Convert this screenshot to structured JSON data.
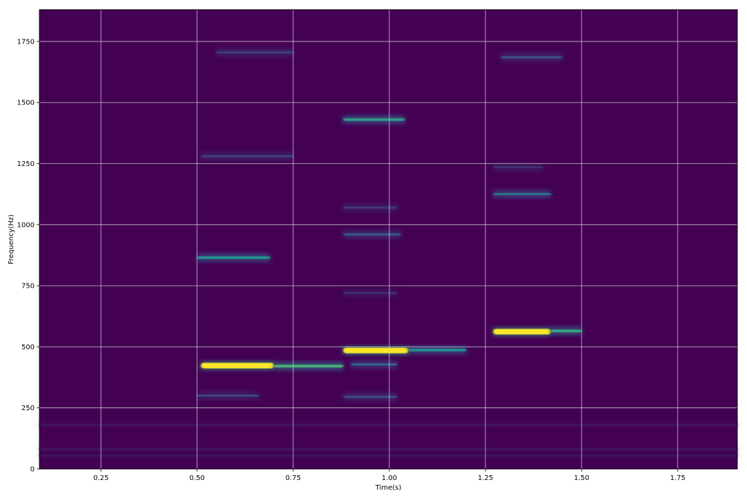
{
  "chart_data": {
    "type": "heatmap",
    "subtype": "spectrogram",
    "title": "",
    "xlabel": "Time(s)",
    "ylabel": "Frequency(Hz)",
    "xlim": [
      0.09,
      1.905
    ],
    "ylim": [
      0,
      1880
    ],
    "xticks": [
      0.25,
      0.5,
      0.75,
      1.0,
      1.25,
      1.5,
      1.75
    ],
    "xtick_labels": [
      "0.25",
      "0.50",
      "0.75",
      "1.00",
      "1.25",
      "1.50",
      "1.75"
    ],
    "yticks": [
      0,
      250,
      500,
      750,
      1000,
      1250,
      1500,
      1750
    ],
    "ytick_labels": [
      "0",
      "250",
      "500",
      "750",
      "1000",
      "1250",
      "1500",
      "1750"
    ],
    "grid": true,
    "colormap": "viridis",
    "background_color": "#440154",
    "grid_color": "#c8c8c8",
    "harmonic_bands": [
      {
        "t_start": 0.51,
        "t_end": 0.7,
        "freq": 423,
        "intensity": 1.0
      },
      {
        "t_start": 0.7,
        "t_end": 0.88,
        "freq": 421,
        "intensity": 0.65
      },
      {
        "t_start": 0.5,
        "t_end": 0.66,
        "freq": 300,
        "intensity": 0.22
      },
      {
        "t_start": 0.5,
        "t_end": 0.69,
        "freq": 865,
        "intensity": 0.5
      },
      {
        "t_start": 0.51,
        "t_end": 0.75,
        "freq": 1280,
        "intensity": 0.2
      },
      {
        "t_start": 0.55,
        "t_end": 0.75,
        "freq": 1705,
        "intensity": 0.2
      },
      {
        "t_start": 0.88,
        "t_end": 1.05,
        "freq": 485,
        "intensity": 1.0
      },
      {
        "t_start": 1.05,
        "t_end": 1.2,
        "freq": 487,
        "intensity": 0.5
      },
      {
        "t_start": 0.9,
        "t_end": 1.02,
        "freq": 428,
        "intensity": 0.35
      },
      {
        "t_start": 0.88,
        "t_end": 1.02,
        "freq": 295,
        "intensity": 0.25
      },
      {
        "t_start": 0.88,
        "t_end": 1.02,
        "freq": 720,
        "intensity": 0.15
      },
      {
        "t_start": 0.88,
        "t_end": 1.03,
        "freq": 960,
        "intensity": 0.3
      },
      {
        "t_start": 0.88,
        "t_end": 1.02,
        "freq": 1070,
        "intensity": 0.18
      },
      {
        "t_start": 0.88,
        "t_end": 1.04,
        "freq": 1430,
        "intensity": 0.55
      },
      {
        "t_start": 1.27,
        "t_end": 1.42,
        "freq": 562,
        "intensity": 1.0
      },
      {
        "t_start": 1.42,
        "t_end": 1.5,
        "freq": 565,
        "intensity": 0.6
      },
      {
        "t_start": 1.27,
        "t_end": 1.42,
        "freq": 1125,
        "intensity": 0.4
      },
      {
        "t_start": 1.27,
        "t_end": 1.4,
        "freq": 1235,
        "intensity": 0.15
      },
      {
        "t_start": 1.29,
        "t_end": 1.45,
        "freq": 1685,
        "intensity": 0.25
      },
      {
        "t_start": 0.09,
        "t_end": 1.905,
        "freq": 180,
        "intensity": 0.12
      },
      {
        "t_start": 0.09,
        "t_end": 1.905,
        "freq": 80,
        "intensity": 0.12
      },
      {
        "t_start": 0.09,
        "t_end": 1.905,
        "freq": 55,
        "intensity": 0.1
      }
    ]
  }
}
